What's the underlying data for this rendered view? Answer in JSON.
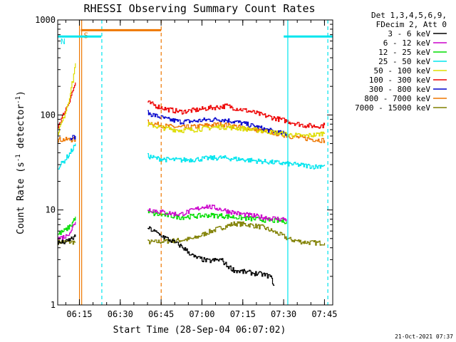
{
  "chart_data": {
    "type": "line",
    "title": "RHESSI Observing Summary Count Rates",
    "xlabel": "Start Time (28-Sep-04 06:07:02)",
    "ylabel_pre": "Count Rate (s",
    "ylabel_sup1": "-1",
    "ylabel_mid": " detector",
    "ylabel_sup2": "-1",
    "ylabel_post": ")",
    "x_unit": "minutes since 06:07:02",
    "xlim": [
      0,
      101
    ],
    "ylim": [
      1,
      1000
    ],
    "yscale": "log",
    "xticks": [
      {
        "v": 7.97,
        "label": "06:15"
      },
      {
        "v": 22.97,
        "label": "06:30"
      },
      {
        "v": 37.97,
        "label": "06:45"
      },
      {
        "v": 52.97,
        "label": "07:00"
      },
      {
        "v": 67.97,
        "label": "07:15"
      },
      {
        "v": 82.97,
        "label": "07:30"
      },
      {
        "v": 97.97,
        "label": "07:45"
      }
    ],
    "yticks": [
      {
        "v": 1,
        "label": "1"
      },
      {
        "v": 10,
        "label": "10"
      },
      {
        "v": 100,
        "label": "100"
      },
      {
        "v": 1000,
        "label": "1000"
      }
    ],
    "legend_header": [
      "Det 1,3,4,5,6,9,",
      "FDecim 2, Att 0"
    ],
    "legend_placement": "right",
    "series": [
      {
        "name": "3 - 6 keV",
        "color": "#000000",
        "segments": [
          {
            "x": [
              0,
              3,
              5,
              6.5
            ],
            "y": [
              4.5,
              4.6,
              5.0,
              5.2
            ]
          },
          {
            "x": [
              33,
              36,
              40,
              45,
              50,
              55,
              60,
              62,
              65,
              70,
              75,
              78,
              79.5
            ],
            "y": [
              6.5,
              5.8,
              5.0,
              4.2,
              3.2,
              2.9,
              3.0,
              2.6,
              2.3,
              2.2,
              2.1,
              2.0,
              1.6
            ]
          }
        ]
      },
      {
        "name": "6 - 12 keV",
        "color": "#cc00cc",
        "segments": [
          {
            "x": [
              0,
              3,
              5,
              6.5
            ],
            "y": [
              5.0,
              5.3,
              6.2,
              7.5
            ]
          },
          {
            "x": [
              33,
              36,
              40,
              45,
              50,
              54,
              58,
              62,
              66,
              70,
              75,
              80,
              84
            ],
            "y": [
              10.2,
              9.8,
              9.3,
              9.0,
              10.0,
              11.0,
              10.5,
              9.8,
              9.2,
              8.8,
              8.4,
              8.1,
              8.0
            ]
          }
        ]
      },
      {
        "name": "12 - 25 keV",
        "color": "#00dd00",
        "segments": [
          {
            "x": [
              0,
              3,
              5,
              6.5
            ],
            "y": [
              5.5,
              6.2,
              7.0,
              8.5
            ]
          },
          {
            "x": [
              33,
              36,
              40,
              45,
              50,
              55,
              60,
              65,
              70,
              75,
              80,
              84
            ],
            "y": [
              9.5,
              9.0,
              8.8,
              8.4,
              8.6,
              8.8,
              8.7,
              8.4,
              8.1,
              7.9,
              7.7,
              7.6
            ]
          }
        ]
      },
      {
        "name": "25 - 50 keV",
        "color": "#00e5ee",
        "segments": [
          {
            "x": [
              0,
              2,
              4,
              5.5,
              6.5
            ],
            "y": [
              28,
              32,
              38,
              44,
              50
            ]
          },
          {
            "x": [
              33,
              36,
              40,
              45,
              50,
              55,
              60,
              65,
              70,
              75,
              80,
              85,
              90,
              95,
              98
            ],
            "y": [
              37,
              35,
              34,
              33.5,
              34,
              35,
              35.5,
              34.5,
              33.5,
              32.5,
              31.5,
              30.5,
              29.5,
              28.5,
              30
            ]
          }
        ]
      },
      {
        "name": "50 - 100 keV",
        "color": "#dddd00",
        "segments": [
          {
            "x": [
              0,
              2,
              4,
              5.5,
              6.5
            ],
            "y": [
              65,
              90,
              140,
              230,
              350
            ]
          },
          {
            "x": [
              33,
              36,
              40,
              45,
              50,
              55,
              60,
              65,
              70,
              75,
              80,
              85,
              90,
              95,
              98
            ],
            "y": [
              80,
              76,
              72,
              69,
              70,
              73,
              75,
              73,
              71,
              68,
              65,
              62,
              60,
              62,
              65
            ]
          }
        ]
      },
      {
        "name": "100 - 300 keV",
        "color": "#ee0000",
        "segments": [
          {
            "x": [
              0,
              2,
              4,
              5.5,
              6.5
            ],
            "y": [
              75,
              100,
              135,
              180,
              220
            ]
          },
          {
            "x": [
              33,
              36,
              40,
              45,
              50,
              55,
              60,
              62,
              65,
              70,
              75,
              80,
              85,
              90,
              95,
              98
            ],
            "y": [
              135,
              125,
              115,
              108,
              112,
              118,
              122,
              125,
              118,
              110,
              100,
              92,
              85,
              78,
              76,
              78
            ]
          }
        ]
      },
      {
        "name": "300 - 800 keV",
        "color": "#0000cc",
        "segments": [
          {
            "x": [
              4.5,
              5.5,
              6.5
            ],
            "y": [
              55,
              58,
              60
            ]
          },
          {
            "x": [
              33,
              36,
              40,
              45,
              50,
              55,
              60,
              65,
              70,
              75,
              80,
              84
            ],
            "y": [
              105,
              98,
              90,
              85,
              86,
              89,
              90,
              85,
              79,
              72,
              66,
              63
            ]
          }
        ]
      },
      {
        "name": "800 - 7000 keV",
        "color": "#ee7700",
        "segments": [
          {
            "x": [
              0,
              3,
              5,
              6.5
            ],
            "y": [
              55,
              55,
              55,
              55
            ]
          },
          {
            "x": [
              33,
              36,
              40,
              45,
              50,
              55,
              60,
              65,
              70,
              75,
              80,
              85,
              90,
              95,
              98
            ],
            "y": [
              84,
              80,
              76,
              74,
              75,
              78,
              80,
              76,
              72,
              68,
              64,
              60,
              57,
              55,
              54
            ]
          }
        ]
      },
      {
        "name": "7000 - 15000 keV",
        "color": "#808000",
        "segments": [
          {
            "x": [
              0,
              2,
              4,
              6.5
            ],
            "y": [
              4.6,
              4.6,
              4.6,
              4.6
            ]
          },
          {
            "x": [
              33,
              36,
              40,
              45,
              50,
              55,
              60,
              65,
              70,
              75,
              80,
              85,
              90,
              95,
              98
            ],
            "y": [
              4.6,
              4.6,
              4.7,
              4.8,
              5.0,
              5.8,
              6.5,
              7.2,
              7.0,
              6.6,
              5.8,
              4.9,
              4.6,
              4.5,
              4.5
            ]
          }
        ]
      }
    ],
    "flags": [
      {
        "label": "S",
        "color": "#ee7700",
        "x0": 8.5,
        "x1": 38,
        "y": 780
      },
      {
        "label": "N",
        "color": "#00e5ee",
        "x0": 0,
        "x1": 16,
        "y": 670
      },
      {
        "label": "",
        "color": "#00e5ee",
        "x0": 83,
        "x1": 101,
        "y": 670
      }
    ],
    "vlines": [
      {
        "x": 8.0,
        "color": "#ee7700",
        "style": "solid"
      },
      {
        "x": 8.8,
        "color": "#ee7700",
        "style": "solid"
      },
      {
        "x": 38,
        "color": "#ee7700",
        "style": "dashed"
      },
      {
        "x": 16.2,
        "color": "#00e5ee",
        "style": "dashed"
      },
      {
        "x": 84.5,
        "color": "#00e5ee",
        "style": "solid"
      },
      {
        "x": 99.2,
        "color": "#00e5ee",
        "style": "dashed"
      }
    ],
    "footer": "21-Oct-2021 07:37"
  }
}
